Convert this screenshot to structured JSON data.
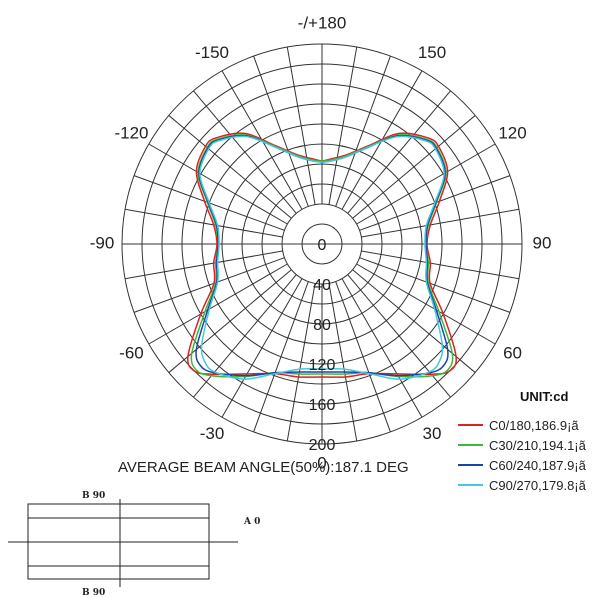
{
  "chart_data": {
    "type": "polar-line",
    "unit_label": "UNIT:cd",
    "beam_angle_text": "AVERAGE BEAM ANGLE(50%):187.1 DEG",
    "angular_axis": {
      "labels": [
        {
          "angle": 180,
          "text": "-/+180"
        },
        {
          "angle": 150,
          "text": "150"
        },
        {
          "angle": -150,
          "text": "-150"
        },
        {
          "angle": 120,
          "text": "120"
        },
        {
          "angle": -120,
          "text": "-120"
        },
        {
          "angle": 90,
          "text": "90"
        },
        {
          "angle": -90,
          "text": "-90"
        },
        {
          "angle": 60,
          "text": "60"
        },
        {
          "angle": -60,
          "text": "-60"
        },
        {
          "angle": 30,
          "text": "30"
        },
        {
          "angle": -30,
          "text": "-30"
        },
        {
          "angle": 0,
          "text": "0"
        }
      ],
      "spoke_step_deg": 10
    },
    "radial_axis": {
      "max": 200,
      "ring_step": 20,
      "tick_labels": [
        {
          "value": 0,
          "text": "0"
        },
        {
          "value": 40,
          "text": "40"
        },
        {
          "value": 80,
          "text": "80"
        },
        {
          "value": 120,
          "text": "120"
        },
        {
          "value": 160,
          "text": "160"
        },
        {
          "value": 200,
          "text": "200"
        }
      ]
    },
    "series": [
      {
        "name": "C0/180,186.9¡ã",
        "color": "#e02020",
        "points": [
          [
            0,
            133
          ],
          [
            10,
            135
          ],
          [
            20,
            138
          ],
          [
            30,
            150
          ],
          [
            40,
            170
          ],
          [
            45,
            180
          ],
          [
            50,
            175
          ],
          [
            60,
            140
          ],
          [
            70,
            115
          ],
          [
            80,
            110
          ],
          [
            90,
            105
          ],
          [
            100,
            110
          ],
          [
            110,
            125
          ],
          [
            120,
            145
          ],
          [
            130,
            152
          ],
          [
            135,
            150
          ],
          [
            145,
            135
          ],
          [
            155,
            108
          ],
          [
            165,
            92
          ],
          [
            175,
            85
          ],
          [
            180,
            83
          ]
        ]
      },
      {
        "name": "C30/210,194.1¡ã",
        "color": "#3cb83c",
        "points": [
          [
            0,
            130
          ],
          [
            10,
            132
          ],
          [
            20,
            137
          ],
          [
            30,
            153
          ],
          [
            40,
            172
          ],
          [
            45,
            178
          ],
          [
            50,
            170
          ],
          [
            60,
            135
          ],
          [
            70,
            113
          ],
          [
            80,
            108
          ],
          [
            90,
            104
          ],
          [
            100,
            108
          ],
          [
            110,
            122
          ],
          [
            120,
            143
          ],
          [
            130,
            150
          ],
          [
            135,
            148
          ],
          [
            145,
            133
          ],
          [
            155,
            107
          ],
          [
            165,
            91
          ],
          [
            175,
            84
          ],
          [
            180,
            83
          ]
        ]
      },
      {
        "name": "C60/240,187.9¡ã",
        "color": "#1846a6",
        "points": [
          [
            0,
            128
          ],
          [
            10,
            130
          ],
          [
            20,
            137
          ],
          [
            30,
            152
          ],
          [
            40,
            168
          ],
          [
            45,
            172
          ],
          [
            50,
            164
          ],
          [
            60,
            132
          ],
          [
            70,
            112
          ],
          [
            80,
            107
          ],
          [
            90,
            104
          ],
          [
            100,
            107
          ],
          [
            110,
            121
          ],
          [
            120,
            142
          ],
          [
            130,
            149
          ],
          [
            135,
            147
          ],
          [
            145,
            132
          ],
          [
            155,
            106
          ],
          [
            165,
            90
          ],
          [
            175,
            83
          ],
          [
            180,
            82
          ]
        ]
      },
      {
        "name": "C90/270,179.8¡ã",
        "color": "#48c6de",
        "points": [
          [
            0,
            125
          ],
          [
            10,
            127
          ],
          [
            20,
            138
          ],
          [
            30,
            156
          ],
          [
            40,
            167
          ],
          [
            45,
            166
          ],
          [
            50,
            157
          ],
          [
            60,
            130
          ],
          [
            70,
            111
          ],
          [
            80,
            106
          ],
          [
            90,
            103
          ],
          [
            100,
            106
          ],
          [
            110,
            120
          ],
          [
            120,
            141
          ],
          [
            130,
            148
          ],
          [
            135,
            146
          ],
          [
            145,
            131
          ],
          [
            155,
            106
          ],
          [
            165,
            90
          ],
          [
            175,
            83
          ],
          [
            180,
            82
          ]
        ]
      }
    ]
  },
  "diagram": {
    "label_top": "B 90",
    "label_bottom": "B 90",
    "label_right": "A 0"
  }
}
